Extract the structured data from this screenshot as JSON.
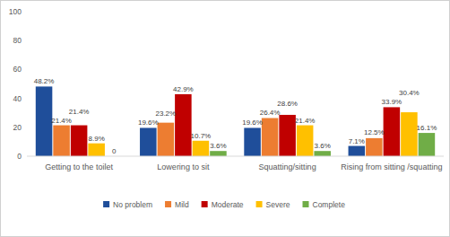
{
  "chart_data": {
    "type": "bar",
    "categories": [
      "Getting to the toilet",
      "Lowering to sit",
      "Squatting/sitting",
      "Rising from sitting /squatting"
    ],
    "series": [
      {
        "name": "No problem",
        "color": "#1f4e9a",
        "values": [
          48.2,
          19.6,
          19.6,
          7.1
        ],
        "value_labels": [
          "48.2%",
          "19.6%",
          "19.6%",
          "7.1%"
        ]
      },
      {
        "name": "Mild",
        "color": "#ed7d31",
        "values": [
          21.4,
          23.2,
          26.4,
          12.5
        ],
        "value_labels": [
          "21.4%",
          "23.2%",
          "26.4%",
          "12.5%"
        ]
      },
      {
        "name": "Moderate",
        "color": "#c00000",
        "values": [
          21.4,
          42.9,
          28.6,
          33.9
        ],
        "value_labels": [
          "21.4%",
          "42.9%",
          "28.6%",
          "33.9%"
        ]
      },
      {
        "name": "Severe",
        "color": "#ffc000",
        "values": [
          8.9,
          10.7,
          21.4,
          30.4
        ],
        "value_labels": [
          "8.9%",
          "10.7%",
          "21.4%",
          "30.4%"
        ]
      },
      {
        "name": "Complete",
        "color": "#70ad47",
        "values": [
          0,
          3.6,
          3.6,
          16.1
        ],
        "value_labels": [
          "0",
          "3.6%",
          "3.6%",
          "16.1%"
        ]
      }
    ],
    "ylim": [
      0,
      100
    ],
    "yticks": [
      0,
      20,
      40,
      60,
      80,
      100
    ],
    "grid": false,
    "legend": "bottom",
    "data_labels": true
  }
}
